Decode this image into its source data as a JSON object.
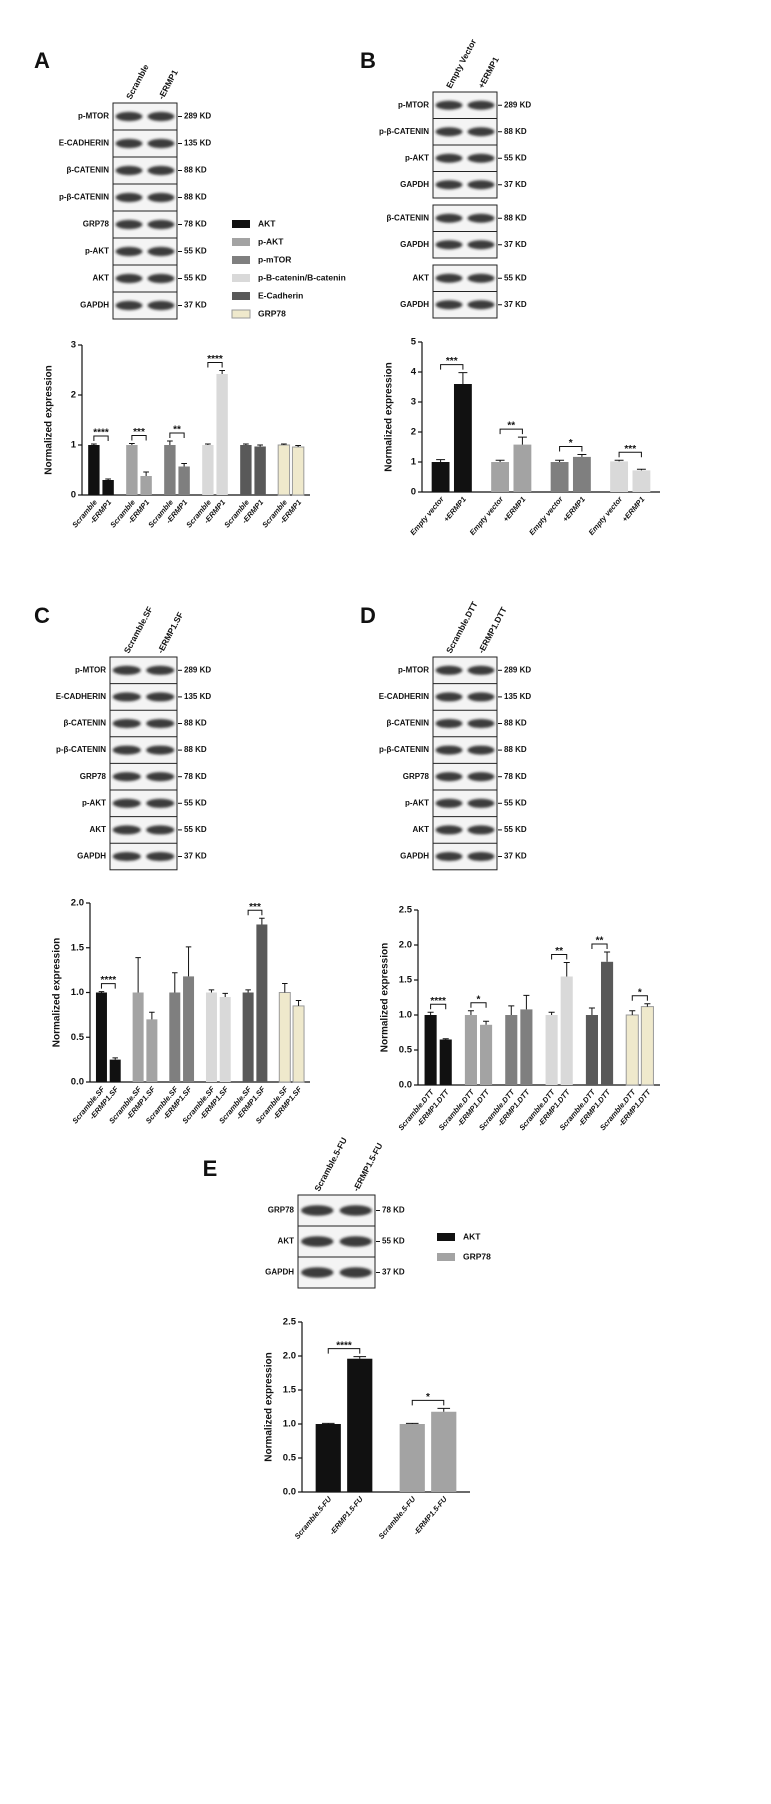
{
  "panels": [
    {
      "letter": "A",
      "blot": {
        "lanes": [
          "Scramble",
          "-ERMP1"
        ],
        "blocks": [
          [
            {
              "protein": "p-MTOR",
              "size": "289 KD"
            },
            {
              "protein": "E-CADHERIN",
              "size": "135 KD"
            },
            {
              "protein": "β-CATENIN",
              "size": "88 KD"
            },
            {
              "protein": "p-β-CATENIN",
              "size": "88 KD"
            },
            {
              "protein": "GRP78",
              "size": "78 KD"
            },
            {
              "protein": "p-AKT",
              "size": "55 KD"
            },
            {
              "protein": "AKT",
              "size": "55 KD"
            },
            {
              "protein": "GAPDH",
              "size": "37 KD"
            }
          ]
        ]
      }
    },
    {
      "letter": "B",
      "blot": {
        "lanes": [
          "Empty Vector",
          "+ERMP1"
        ],
        "blocks": [
          [
            {
              "protein": "p-MTOR",
              "size": "289 KD"
            },
            {
              "protein": "p-β-CATENIN",
              "size": "88 KD"
            },
            {
              "protein": "p-AKT",
              "size": "55 KD"
            },
            {
              "protein": "GAPDH",
              "size": "37 KD"
            }
          ],
          [
            {
              "protein": "β-CATENIN",
              "size": "88 KD"
            },
            {
              "protein": "GAPDH",
              "size": "37 KD"
            }
          ],
          [
            {
              "protein": "AKT",
              "size": "55 KD"
            },
            {
              "protein": "GAPDH",
              "size": "37 KD"
            }
          ]
        ]
      }
    },
    {
      "letter": "C",
      "blot": {
        "lanes": [
          "Scramble.SF",
          "-ERMP1.SF"
        ],
        "blocks": [
          [
            {
              "protein": "p-MTOR",
              "size": "289 KD"
            },
            {
              "protein": "E-CADHERIN",
              "size": "135 KD"
            },
            {
              "protein": "β-CATENIN",
              "size": "88 KD"
            },
            {
              "protein": "p-β-CATENIN",
              "size": "88 KD"
            },
            {
              "protein": "GRP78",
              "size": "78 KD"
            },
            {
              "protein": "p-AKT",
              "size": "55 KD"
            },
            {
              "protein": "AKT",
              "size": "55 KD"
            },
            {
              "protein": "GAPDH",
              "size": "37 KD"
            }
          ]
        ]
      }
    },
    {
      "letter": "D",
      "blot": {
        "lanes": [
          "Scramble.DTT",
          "-ERMP1.DTT"
        ],
        "blocks": [
          [
            {
              "protein": "p-MTOR",
              "size": "289 KD"
            },
            {
              "protein": "E-CADHERIN",
              "size": "135 KD"
            },
            {
              "protein": "β-CATENIN",
              "size": "88 KD"
            },
            {
              "protein": "p-β-CATENIN",
              "size": "88 KD"
            },
            {
              "protein": "GRP78",
              "size": "78 KD"
            },
            {
              "protein": "p-AKT",
              "size": "55 KD"
            },
            {
              "protein": "AKT",
              "size": "55 KD"
            },
            {
              "protein": "GAPDH",
              "size": "37 KD"
            }
          ]
        ]
      }
    },
    {
      "letter": "E",
      "blot": {
        "lanes": [
          "Scramble.5-FU",
          "-ERMP1.5-FU"
        ],
        "blocks": [
          [
            {
              "protein": "GRP78",
              "size": "78 KD"
            },
            {
              "protein": "AKT",
              "size": "55 KD"
            },
            {
              "protein": "GAPDH",
              "size": "37 KD"
            }
          ]
        ]
      }
    }
  ],
  "chart_data": [
    {
      "type": "bar",
      "ylabel": "Normalized expression",
      "ylim": [
        0,
        3
      ],
      "yticks": [
        0,
        1,
        2,
        3
      ],
      "legend": true,
      "groups": [
        {
          "name": "AKT",
          "color": "#111111",
          "categories": [
            "Scramble",
            "-ERMP1"
          ],
          "values": [
            1.0,
            0.3
          ],
          "errors": [
            0.02,
            0.02
          ],
          "significance": "****"
        },
        {
          "name": "p-AKT",
          "color": "#a3a3a3",
          "categories": [
            "Scramble",
            "-ERMP1"
          ],
          "values": [
            1.0,
            0.38
          ],
          "errors": [
            0.03,
            0.08
          ],
          "significance": "***"
        },
        {
          "name": "p-mTOR",
          "color": "#7f7f7f",
          "categories": [
            "Scramble",
            "-ERMP1"
          ],
          "values": [
            1.0,
            0.57
          ],
          "errors": [
            0.08,
            0.06
          ],
          "significance": "**"
        },
        {
          "name": "p-B-catenin/B-catenin",
          "color": "#d9d9d9",
          "categories": [
            "Scramble",
            "-ERMP1"
          ],
          "values": [
            1.0,
            2.42
          ],
          "errors": [
            0.02,
            0.07
          ],
          "significance": "****"
        },
        {
          "name": "E-Cadherin",
          "color": "#595959",
          "categories": [
            "Scramble",
            "-ERMP1"
          ],
          "values": [
            1.0,
            0.97
          ],
          "errors": [
            0.02,
            0.03
          ]
        },
        {
          "name": "GRP78",
          "color": "#efe9cc",
          "edgecolor": "#9a9a9a",
          "categories": [
            "Scramble",
            "-ERMP1"
          ],
          "values": [
            1.0,
            0.96
          ],
          "errors": [
            0.02,
            0.03
          ]
        }
      ]
    },
    {
      "type": "bar",
      "ylabel": "Normalized expression",
      "ylim": [
        0,
        5
      ],
      "yticks": [
        0,
        1,
        2,
        3,
        4,
        5
      ],
      "legend": false,
      "groups": [
        {
          "color": "#111111",
          "categories": [
            "Empty vector",
            "+ERMP1"
          ],
          "values": [
            1.0,
            3.6
          ],
          "errors": [
            0.08,
            0.38
          ],
          "significance": "***"
        },
        {
          "color": "#a3a3a3",
          "categories": [
            "Empty vector",
            "+ERMP1"
          ],
          "values": [
            1.0,
            1.58
          ],
          "errors": [
            0.06,
            0.25
          ],
          "significance": "**"
        },
        {
          "color": "#7f7f7f",
          "categories": [
            "Empty vector",
            "+ERMP1"
          ],
          "values": [
            1.0,
            1.17
          ],
          "errors": [
            0.06,
            0.08
          ],
          "significance": "*"
        },
        {
          "color": "#d9d9d9",
          "categories": [
            "Empty vector",
            "+ERMP1"
          ],
          "values": [
            1.02,
            0.72
          ],
          "errors": [
            0.04,
            0.04
          ],
          "significance": "***"
        }
      ]
    },
    {
      "type": "bar",
      "ylabel": "Normalized expression",
      "ylim": [
        0,
        2
      ],
      "yticks": [
        {
          "value": 0,
          "label": "0.0"
        },
        0.5,
        {
          "value": 1,
          "label": "1.0"
        },
        1.5,
        {
          "value": 2,
          "label": "2.0"
        }
      ],
      "legend": false,
      "groups": [
        {
          "color": "#111111",
          "categories": [
            "Scramble.SF",
            "-ERMP1.SF"
          ],
          "values": [
            1.0,
            0.25
          ],
          "errors": [
            0.01,
            0.02
          ],
          "significance": "****"
        },
        {
          "color": "#a3a3a3",
          "categories": [
            "Scramble.SF",
            "-ERMP1.SF"
          ],
          "values": [
            1.0,
            0.7
          ],
          "errors": [
            0.39,
            0.08
          ]
        },
        {
          "color": "#7f7f7f",
          "categories": [
            "Scramble.SF",
            "-ERMP1.SF"
          ],
          "values": [
            1.0,
            1.18
          ],
          "errors": [
            0.22,
            0.33
          ]
        },
        {
          "color": "#d9d9d9",
          "categories": [
            "Scramble.SF",
            "-ERMP1.SF"
          ],
          "values": [
            1.0,
            0.95
          ],
          "errors": [
            0.03,
            0.04
          ]
        },
        {
          "color": "#595959",
          "categories": [
            "Scramble.SF",
            "-ERMP1.SF"
          ],
          "values": [
            1.0,
            1.76
          ],
          "errors": [
            0.03,
            0.07
          ],
          "significance": "***"
        },
        {
          "color": "#efe9cc",
          "edgecolor": "#9a9a9a",
          "categories": [
            "Scramble.SF",
            "-ERMP1.SF"
          ],
          "values": [
            1.0,
            0.85
          ],
          "errors": [
            0.1,
            0.06
          ]
        }
      ]
    },
    {
      "type": "bar",
      "ylabel": "Normalized expression",
      "ylim": [
        0,
        2.5
      ],
      "yticks": [
        {
          "value": 0,
          "label": "0.0"
        },
        0.5,
        {
          "value": 1,
          "label": "1.0"
        },
        1.5,
        {
          "value": 2,
          "label": "2.0"
        },
        2.5
      ],
      "legend": false,
      "groups": [
        {
          "color": "#111111",
          "categories": [
            "Scramble.DTT",
            "-ERMP1.DTT"
          ],
          "values": [
            1.0,
            0.65
          ],
          "errors": [
            0.04,
            0.01
          ],
          "significance": "****"
        },
        {
          "color": "#a3a3a3",
          "categories": [
            "Scramble.DTT",
            "-ERMP1.DTT"
          ],
          "values": [
            1.0,
            0.86
          ],
          "errors": [
            0.06,
            0.05
          ],
          "significance": "*"
        },
        {
          "color": "#7f7f7f",
          "categories": [
            "Scramble.DTT",
            "-ERMP1.DTT"
          ],
          "values": [
            1.0,
            1.08
          ],
          "errors": [
            0.13,
            0.2
          ]
        },
        {
          "color": "#d9d9d9",
          "categories": [
            "Scramble.DTT",
            "-ERMP1.DTT"
          ],
          "values": [
            1.0,
            1.55
          ],
          "errors": [
            0.04,
            0.2
          ],
          "significance": "**"
        },
        {
          "color": "#595959",
          "categories": [
            "Scramble.DTT",
            "-ERMP1.DTT"
          ],
          "values": [
            1.0,
            1.76
          ],
          "errors": [
            0.1,
            0.14
          ],
          "significance": "**"
        },
        {
          "color": "#efe9cc",
          "edgecolor": "#9a9a9a",
          "categories": [
            "Scramble.DTT",
            "-ERMP1.DTT"
          ],
          "values": [
            1.0,
            1.12
          ],
          "errors": [
            0.06,
            0.04
          ],
          "significance": "*"
        }
      ]
    },
    {
      "type": "bar",
      "ylabel": "Normalized expression",
      "ylim": [
        0,
        2.5
      ],
      "yticks": [
        {
          "value": 0,
          "label": "0.0"
        },
        0.5,
        {
          "value": 1,
          "label": "1.0"
        },
        1.5,
        {
          "value": 2,
          "label": "2.0"
        },
        2.5
      ],
      "legend": true,
      "groups": [
        {
          "name": "AKT",
          "color": "#111111",
          "categories": [
            "Scramble.5-FU",
            "-ERMP1.5-FU"
          ],
          "values": [
            1.0,
            1.96
          ],
          "errors": [
            0.01,
            0.03
          ],
          "significance": "****"
        },
        {
          "name": "GRP78",
          "color": "#a3a3a3",
          "categories": [
            "Scramble.5-FU",
            "-ERMP1.5-FU"
          ],
          "values": [
            1.0,
            1.18
          ],
          "errors": [
            0.01,
            0.05
          ],
          "significance": "*"
        }
      ]
    }
  ]
}
